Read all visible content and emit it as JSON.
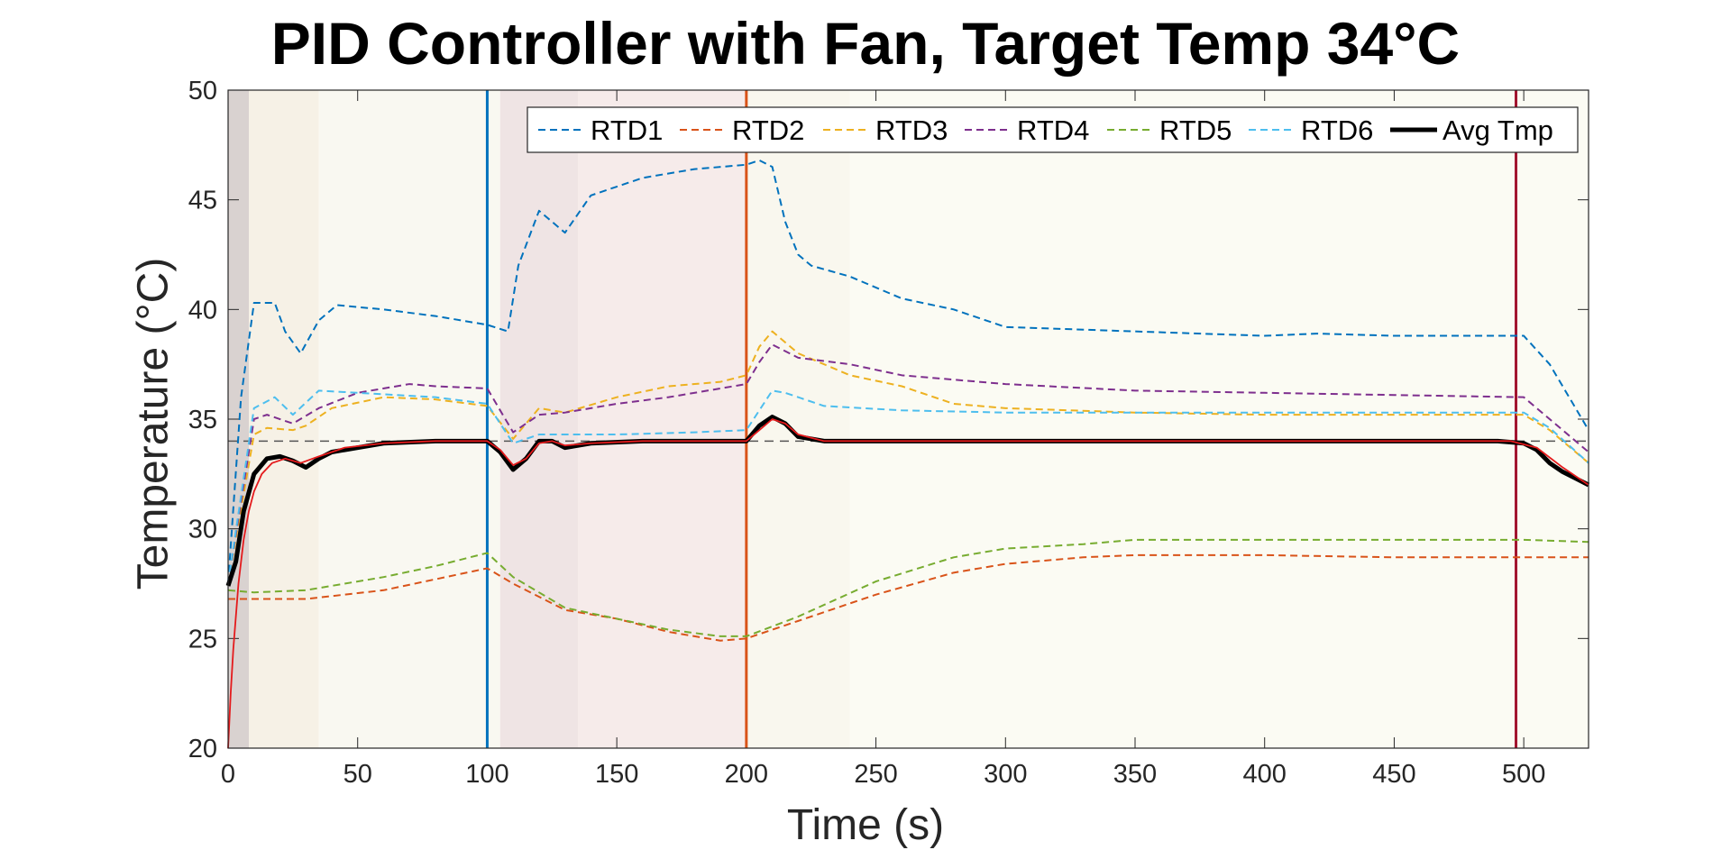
{
  "chart_data": {
    "type": "line",
    "title": "PID Controller with Fan, Target Temp 34°C",
    "xlabel": "Time (s)",
    "ylabel": "Temperature (°C)",
    "xlim": [
      0,
      525
    ],
    "ylim": [
      20,
      50
    ],
    "xticks": [
      0,
      50,
      100,
      150,
      200,
      250,
      300,
      350,
      400,
      450,
      500
    ],
    "yticks": [
      20,
      25,
      30,
      35,
      40,
      45,
      50
    ],
    "legend_position": "top-right",
    "target_temp": 34,
    "event_lines": [
      {
        "x": 100,
        "color": "#0072BD"
      },
      {
        "x": 200,
        "color": "#D95319"
      },
      {
        "x": 497,
        "color": "#A2142F"
      }
    ],
    "background_bands": [
      {
        "x0": 0,
        "x1": 8,
        "color": "#d9d2d0"
      },
      {
        "x0": 8,
        "x1": 35,
        "color": "#f6f1e6"
      },
      {
        "x0": 35,
        "x1": 105,
        "color": "#f9f8f1"
      },
      {
        "x0": 105,
        "x1": 135,
        "color": "#efe4e4"
      },
      {
        "x0": 135,
        "x1": 200,
        "color": "#f6ebea"
      },
      {
        "x0": 200,
        "x1": 240,
        "color": "#f9f7ee"
      },
      {
        "x0": 240,
        "x1": 525,
        "color": "#fbfbf3"
      }
    ],
    "series": [
      {
        "name": "RTD1",
        "color": "#0072BD",
        "style": "dashed",
        "x": [
          0,
          5,
          10,
          18,
          22,
          28,
          35,
          42,
          60,
          80,
          100,
          108,
          112,
          120,
          125,
          130,
          140,
          160,
          180,
          200,
          205,
          210,
          215,
          220,
          225,
          240,
          260,
          280,
          300,
          350,
          400,
          420,
          450,
          490,
          500,
          510,
          520,
          525
        ],
        "y": [
          27.5,
          36,
          40.3,
          40.3,
          39,
          38,
          39.5,
          40.2,
          40,
          39.7,
          39.3,
          39,
          42,
          44.5,
          44,
          43.5,
          45.2,
          46,
          46.4,
          46.6,
          46.8,
          46.5,
          44,
          42.5,
          42,
          41.5,
          40.5,
          40,
          39.2,
          39,
          38.8,
          38.9,
          38.8,
          38.8,
          38.8,
          37.5,
          35.5,
          34.5
        ]
      },
      {
        "name": "RTD2",
        "color": "#D95319",
        "style": "dashed",
        "x": [
          0,
          10,
          30,
          60,
          80,
          100,
          110,
          130,
          150,
          170,
          190,
          200,
          220,
          250,
          280,
          300,
          330,
          350,
          400,
          450,
          500,
          525
        ],
        "y": [
          26.8,
          26.8,
          26.8,
          27.2,
          27.7,
          28.2,
          27.5,
          26.3,
          25.9,
          25.3,
          24.9,
          25.0,
          25.8,
          27.0,
          28.0,
          28.4,
          28.7,
          28.8,
          28.8,
          28.7,
          28.7,
          28.7
        ]
      },
      {
        "name": "RTD3",
        "color": "#EDB120",
        "style": "dashed",
        "x": [
          0,
          10,
          15,
          25,
          30,
          40,
          60,
          80,
          100,
          110,
          120,
          130,
          150,
          170,
          190,
          200,
          205,
          210,
          220,
          240,
          260,
          280,
          300,
          350,
          400,
          450,
          500,
          510,
          525
        ],
        "y": [
          27.5,
          34.3,
          34.6,
          34.5,
          34.7,
          35.5,
          36,
          35.9,
          35.6,
          34.1,
          35.5,
          35.3,
          36.0,
          36.5,
          36.7,
          37.0,
          38.3,
          39.0,
          38.0,
          37.0,
          36.5,
          35.7,
          35.5,
          35.3,
          35.2,
          35.2,
          35.2,
          34.5,
          33.0
        ]
      },
      {
        "name": "RTD4",
        "color": "#7E2F8E",
        "style": "dashed",
        "x": [
          0,
          10,
          15,
          25,
          35,
          50,
          70,
          80,
          100,
          110,
          120,
          130,
          150,
          170,
          190,
          200,
          205,
          210,
          220,
          240,
          260,
          280,
          300,
          350,
          400,
          450,
          500,
          510,
          525
        ],
        "y": [
          27.5,
          35.0,
          35.2,
          34.8,
          35.5,
          36.2,
          36.6,
          36.5,
          36.4,
          34.4,
          35.2,
          35.3,
          35.7,
          36.0,
          36.4,
          36.6,
          37.6,
          38.4,
          37.8,
          37.5,
          37.0,
          36.8,
          36.6,
          36.3,
          36.2,
          36.1,
          36.0,
          35.0,
          33.5
        ]
      },
      {
        "name": "RTD5",
        "color": "#77AC30",
        "style": "dashed",
        "x": [
          0,
          10,
          30,
          60,
          80,
          100,
          110,
          130,
          150,
          170,
          190,
          200,
          220,
          250,
          280,
          300,
          330,
          350,
          400,
          450,
          500,
          525
        ],
        "y": [
          27.2,
          27.1,
          27.2,
          27.8,
          28.3,
          28.9,
          27.8,
          26.4,
          25.9,
          25.4,
          25.1,
          25.1,
          26.0,
          27.6,
          28.7,
          29.1,
          29.3,
          29.5,
          29.5,
          29.5,
          29.5,
          29.4
        ]
      },
      {
        "name": "RTD6",
        "color": "#4DBEEE",
        "style": "dashed",
        "x": [
          0,
          10,
          18,
          25,
          35,
          50,
          80,
          100,
          110,
          120,
          130,
          150,
          180,
          200,
          210,
          215,
          230,
          260,
          300,
          400,
          450,
          500,
          510,
          525
        ],
        "y": [
          27.5,
          35.5,
          36.0,
          35.2,
          36.3,
          36.2,
          36.0,
          35.7,
          33.9,
          34.3,
          34.3,
          34.3,
          34.4,
          34.5,
          36.3,
          36.2,
          35.6,
          35.4,
          35.3,
          35.3,
          35.3,
          35.3,
          34.6,
          33.0
        ]
      },
      {
        "name": "Avg Tmp",
        "color": "#000000",
        "style": "solid",
        "x": [
          0,
          3,
          6,
          10,
          15,
          20,
          25,
          30,
          35,
          40,
          50,
          60,
          80,
          100,
          105,
          110,
          115,
          120,
          125,
          130,
          140,
          160,
          180,
          200,
          205,
          210,
          215,
          220,
          230,
          260,
          300,
          350,
          400,
          450,
          490,
          500,
          505,
          510,
          515,
          520,
          525
        ],
        "y": [
          27.4,
          28.5,
          30.8,
          32.5,
          33.2,
          33.3,
          33.1,
          32.8,
          33.2,
          33.5,
          33.7,
          33.9,
          34.0,
          34.0,
          33.5,
          32.7,
          33.2,
          34.0,
          34.0,
          33.7,
          33.9,
          34.0,
          34.0,
          34.0,
          34.7,
          35.1,
          34.8,
          34.2,
          34.0,
          34.0,
          34.0,
          34.0,
          34.0,
          34.0,
          34.0,
          33.9,
          33.6,
          33.0,
          32.6,
          32.3,
          32.0
        ]
      },
      {
        "color": "#E41A1C",
        "style": "solid",
        "x": [
          0,
          1,
          2,
          4,
          6,
          8,
          10,
          13,
          17,
          22,
          28,
          35,
          45,
          60,
          80,
          100,
          105,
          110,
          115,
          120,
          125,
          130,
          140,
          160,
          180,
          200,
          205,
          210,
          215,
          220,
          230,
          260,
          300,
          400,
          495,
          505,
          515,
          525
        ],
        "y": [
          20.0,
          22.5,
          24.5,
          27.5,
          29.5,
          30.8,
          31.7,
          32.5,
          33.0,
          33.2,
          33.0,
          33.3,
          33.7,
          33.9,
          34.0,
          34.0,
          33.6,
          32.9,
          33.2,
          33.9,
          34.0,
          33.8,
          33.9,
          34.0,
          34.0,
          34.0,
          34.5,
          35.0,
          34.8,
          34.3,
          34.0,
          34.0,
          34.0,
          34.0,
          34.0,
          33.7,
          32.8,
          32.0
        ]
      }
    ]
  }
}
